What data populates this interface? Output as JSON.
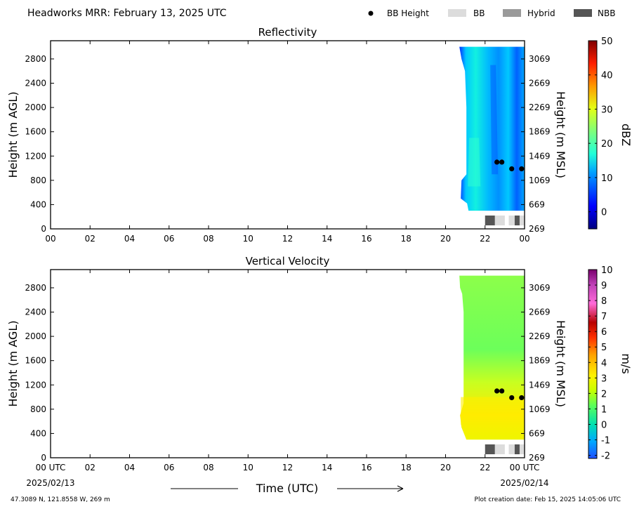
{
  "header": {
    "title": "Headworks MRR:  February 13, 2025 UTC",
    "legend": [
      {
        "label": "BB Height",
        "kind": "dot",
        "color": "#000000"
      },
      {
        "label": "BB",
        "kind": "rect",
        "color": "#dcdcdc"
      },
      {
        "label": "Hybrid",
        "kind": "rect",
        "color": "#9a9a9a"
      },
      {
        "label": "NBB",
        "kind": "rect",
        "color": "#555555"
      }
    ]
  },
  "footer": {
    "location": "47.3089 N, 121.8558 W, 269 m",
    "creation": "Plot creation date: Feb 15, 2025 14:05:06 UTC",
    "xlabel": "Time (UTC)",
    "start_date": "2025/02/13",
    "end_date": "2025/02/14"
  },
  "chart_data": [
    {
      "type": "heatmap",
      "title": "Reflectivity",
      "ylabel": "Height (m AGL)",
      "y2label": "Height (m MSL)",
      "x_ticks": [
        "00",
        "02",
        "04",
        "06",
        "08",
        "10",
        "12",
        "14",
        "16",
        "18",
        "20",
        "22",
        "00"
      ],
      "xlim_hours": [
        0,
        24
      ],
      "y_ticks": [
        0,
        400,
        800,
        1200,
        1600,
        2000,
        2400,
        2800
      ],
      "y2_ticks": [
        269,
        669,
        1069,
        1469,
        1869,
        2269,
        2669,
        3069
      ],
      "ylim": [
        0,
        3100
      ],
      "colorbar": {
        "label": "dBZ",
        "range": [
          -5,
          50
        ],
        "ticks": [
          0,
          10,
          20,
          30,
          40,
          50
        ]
      },
      "data_coverage_hours": [
        20.7,
        24.0
      ],
      "bb_height": [
        {
          "hour": 22.6,
          "height": 1100
        },
        {
          "hour": 22.85,
          "height": 1100
        },
        {
          "hour": 23.35,
          "height": 990
        },
        {
          "hour": 23.85,
          "height": 990
        }
      ],
      "bb_type": [
        {
          "start": 22.0,
          "end": 22.5,
          "type": "NBB"
        },
        {
          "start": 22.5,
          "end": 23.0,
          "type": "BB"
        },
        {
          "start": 23.2,
          "end": 23.5,
          "type": "BB"
        },
        {
          "start": 23.5,
          "end": 23.75,
          "type": "NBB"
        },
        {
          "start": 23.75,
          "end": 24.0,
          "type": "BB"
        }
      ]
    },
    {
      "type": "heatmap",
      "title": "Vertical Velocity",
      "ylabel": "Height (m AGL)",
      "y2label": "Height (m MSL)",
      "x_ticks": [
        "00 UTC",
        "02",
        "04",
        "06",
        "08",
        "10",
        "12",
        "14",
        "16",
        "18",
        "20",
        "22",
        "00 UTC"
      ],
      "xlim_hours": [
        0,
        24
      ],
      "y_ticks": [
        0,
        400,
        800,
        1200,
        1600,
        2000,
        2400,
        2800
      ],
      "y2_ticks": [
        269,
        669,
        1069,
        1469,
        1869,
        2269,
        2669,
        3069
      ],
      "ylim": [
        0,
        3100
      ],
      "colorbar": {
        "label": "m/s",
        "range": [
          -2.2,
          10
        ],
        "ticks": [
          -2,
          -1,
          0,
          1,
          2,
          3,
          4,
          5,
          6,
          7,
          8,
          9,
          10
        ]
      },
      "data_coverage_hours": [
        20.7,
        24.0
      ],
      "bb_height": [
        {
          "hour": 22.6,
          "height": 1100
        },
        {
          "hour": 22.85,
          "height": 1100
        },
        {
          "hour": 23.35,
          "height": 990
        },
        {
          "hour": 23.85,
          "height": 990
        }
      ],
      "bb_type": [
        {
          "start": 22.0,
          "end": 22.5,
          "type": "NBB"
        },
        {
          "start": 22.5,
          "end": 23.0,
          "type": "BB"
        },
        {
          "start": 23.2,
          "end": 23.5,
          "type": "BB"
        },
        {
          "start": 23.5,
          "end": 23.75,
          "type": "NBB"
        },
        {
          "start": 23.75,
          "end": 24.0,
          "type": "BB"
        }
      ]
    }
  ]
}
